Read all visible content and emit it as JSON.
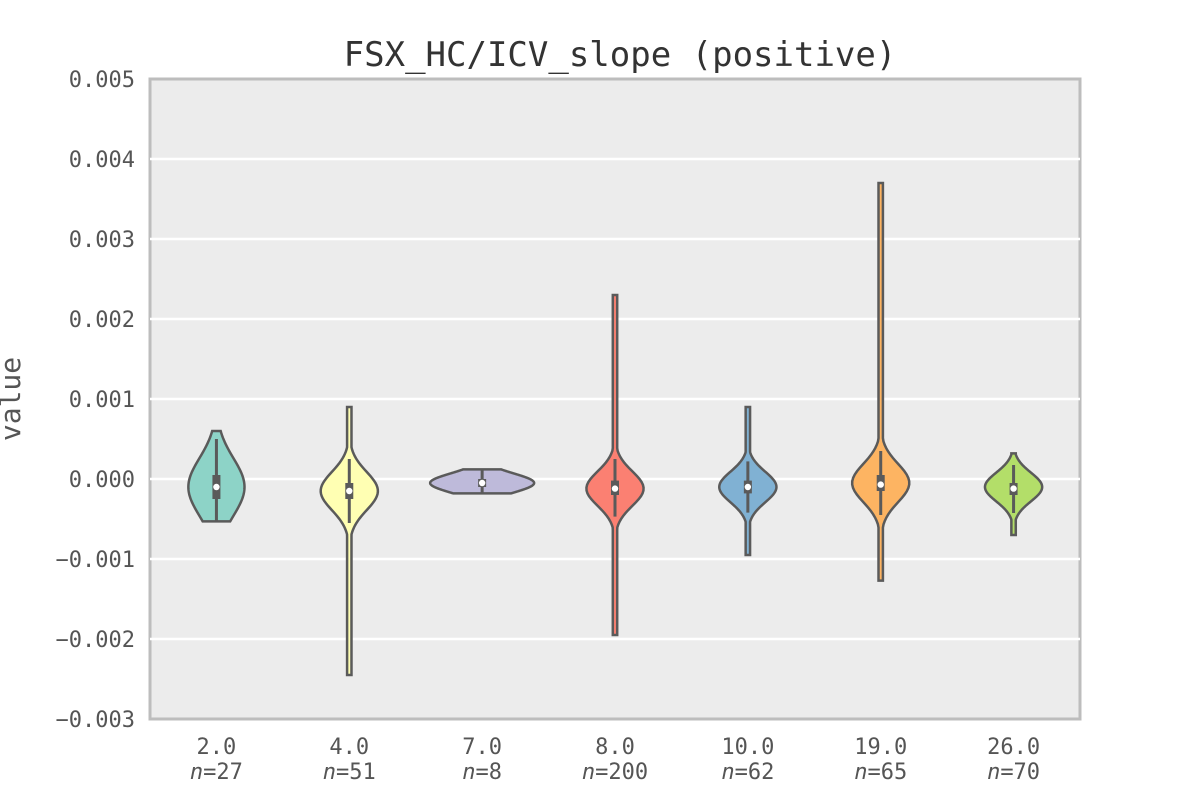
{
  "chart_data": {
    "type": "violin",
    "title": "FSX_HC/ICV_slope (positive)",
    "ylabel": "value",
    "xlabel": "",
    "ylim": [
      -0.003,
      0.005
    ],
    "yticks": [
      "0.005",
      "0.004",
      "0.003",
      "0.002",
      "0.001",
      "0.000",
      "−0.001",
      "−0.002",
      "−0.003"
    ],
    "grid": true,
    "categories": [
      "2.0",
      "4.0",
      "7.0",
      "8.0",
      "10.0",
      "19.0",
      "26.0"
    ],
    "counts": [
      "27",
      "51",
      "8",
      "200",
      "62",
      "65",
      "70"
    ],
    "colors": [
      "#8dd3c7",
      "#ffffb3",
      "#bebada",
      "#fb8072",
      "#80b1d3",
      "#fdb462",
      "#b3de69"
    ],
    "series": [
      {
        "min": -0.00053,
        "q1": -0.00025,
        "median": -0.0001,
        "q3": 5e-05,
        "max": 0.0006,
        "peak": -0.0001
      },
      {
        "min": -0.00245,
        "q1": -0.00025,
        "median": -0.00015,
        "q3": -5e-05,
        "max": 0.0009,
        "peak": -0.00015
      },
      {
        "min": -0.00018,
        "q1": -0.0001,
        "median": -5e-05,
        "q3": 0.0,
        "max": 0.00012,
        "peak": -5e-05
      },
      {
        "min": -0.00195,
        "q1": -0.0002,
        "median": -0.00012,
        "q3": -2e-05,
        "max": 0.0023,
        "peak": -0.00012
      },
      {
        "min": -0.00095,
        "q1": -0.00018,
        "median": -0.0001,
        "q3": -2e-05,
        "max": 0.0009,
        "peak": -0.0001
      },
      {
        "min": -0.00127,
        "q1": -0.00015,
        "median": -7e-05,
        "q3": 5e-05,
        "max": 0.0037,
        "peak": -5e-05
      },
      {
        "min": -0.0007,
        "q1": -0.0002,
        "median": -0.00012,
        "q3": -5e-05,
        "max": 0.00032,
        "peak": -0.0001
      }
    ]
  }
}
